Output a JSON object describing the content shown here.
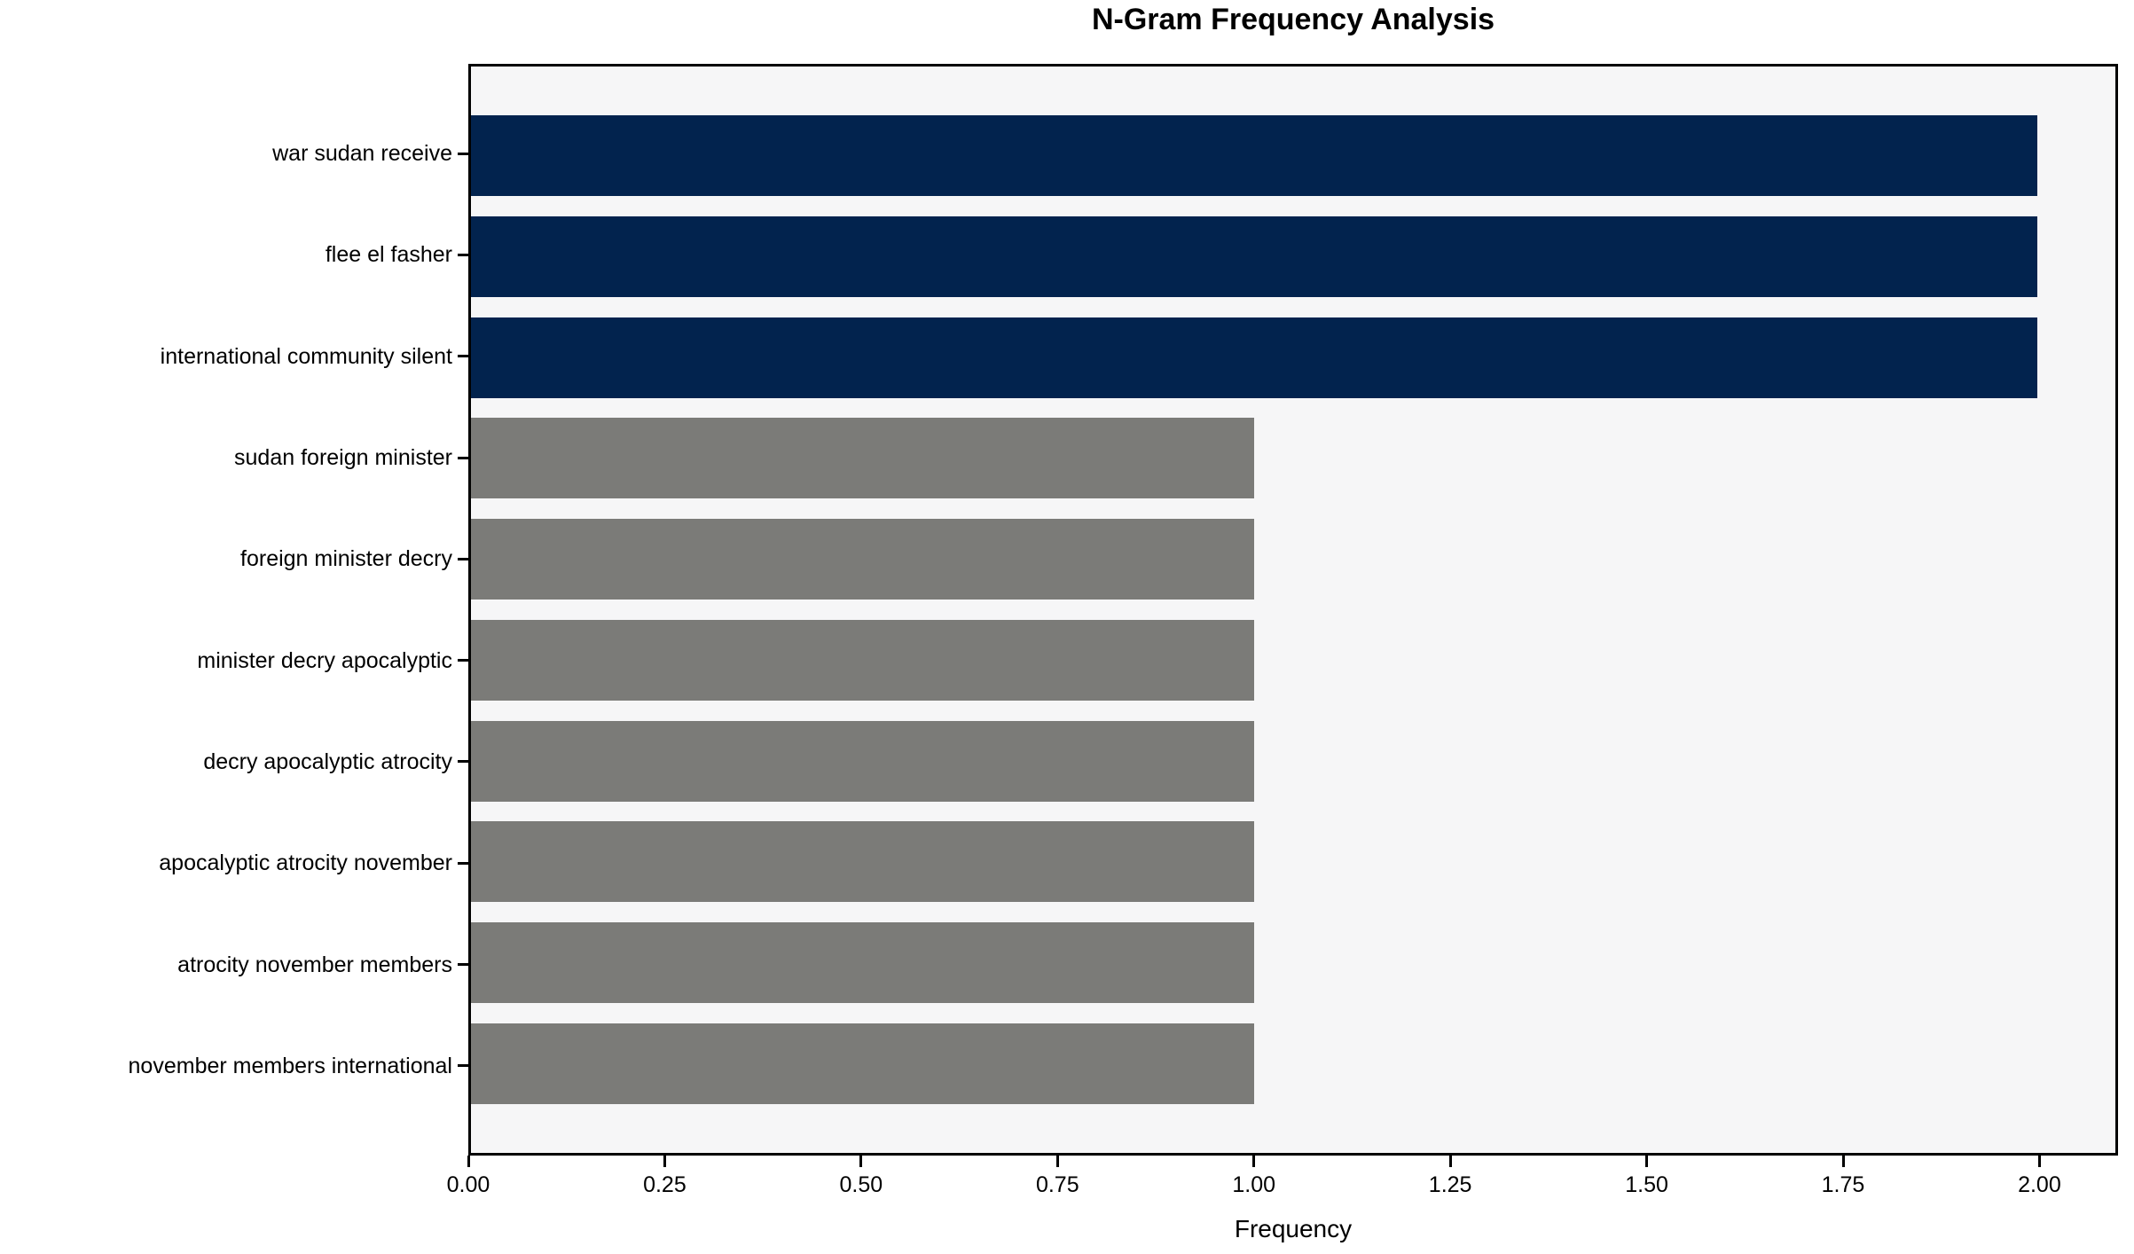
{
  "chart_data": {
    "type": "bar",
    "orientation": "horizontal",
    "title": "N-Gram Frequency Analysis",
    "xlabel": "Frequency",
    "ylabel": "",
    "categories": [
      "war sudan receive",
      "flee el fasher",
      "international community silent",
      "sudan foreign minister",
      "foreign minister decry",
      "minister decry apocalyptic",
      "decry apocalyptic atrocity",
      "apocalyptic atrocity november",
      "atrocity november members",
      "november members international"
    ],
    "values": [
      2,
      2,
      2,
      1,
      1,
      1,
      1,
      1,
      1,
      1
    ],
    "bar_colors": [
      "#02234E",
      "#02234E",
      "#02234E",
      "#7B7B78",
      "#7B7B78",
      "#7B7B78",
      "#7B7B78",
      "#7B7B78",
      "#7B7B78",
      "#7B7B78"
    ],
    "xlim": [
      0,
      2.1
    ],
    "xtick_values": [
      0.0,
      0.25,
      0.5,
      0.75,
      1.0,
      1.25,
      1.5,
      1.75,
      2.0
    ],
    "xtick_labels": [
      "0.00",
      "0.25",
      "0.50",
      "0.75",
      "1.00",
      "1.25",
      "1.50",
      "1.75",
      "2.00"
    ],
    "grid": false,
    "legend": null,
    "colors": {
      "highlight_bar": "#02234E",
      "default_bar": "#7B7B78",
      "plot_background": "#F6F6F7",
      "figure_background": "#FFFFFF",
      "spine": "#000000",
      "text": "#000000"
    }
  }
}
